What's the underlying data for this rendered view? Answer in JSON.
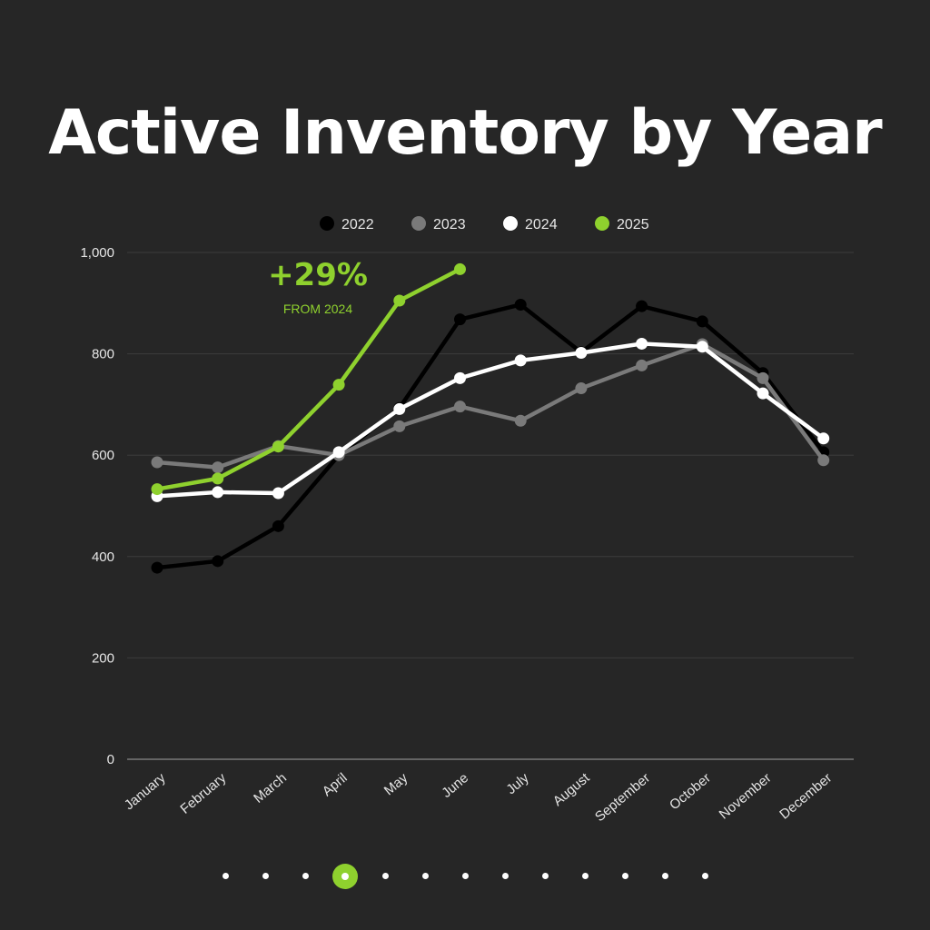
{
  "title": "Active Inventory by Year",
  "chart_data": {
    "type": "line",
    "title": "Active Inventory by Year",
    "categories": [
      "January",
      "February",
      "March",
      "April",
      "May",
      "June",
      "July",
      "August",
      "September",
      "October",
      "November",
      "December"
    ],
    "ylim": [
      0,
      1000
    ],
    "yticks": [
      0,
      200,
      400,
      600,
      800,
      1000
    ],
    "ytick_labels": [
      "0",
      "200",
      "400",
      "600",
      "800",
      "1,000"
    ],
    "grid": true,
    "legend_position": "top-center",
    "series": [
      {
        "name": "2022",
        "color": "#000000",
        "values": [
          378,
          391,
          460,
          600,
          693,
          868,
          897,
          803,
          894,
          864,
          762,
          606
        ]
      },
      {
        "name": "2023",
        "color": "#7a7a7a",
        "values": [
          586,
          576,
          618,
          600,
          657,
          696,
          668,
          732,
          777,
          819,
          752,
          590
        ]
      },
      {
        "name": "2024",
        "color": "#ffffff",
        "values": [
          519,
          527,
          525,
          606,
          691,
          752,
          787,
          802,
          820,
          814,
          722,
          633
        ]
      },
      {
        "name": "2025",
        "color": "#8fd12e",
        "values": [
          533,
          554,
          617,
          739,
          905,
          967,
          null,
          null,
          null,
          null,
          null,
          null
        ]
      }
    ],
    "annotation": {
      "value": "+29%",
      "label": "FROM 2024"
    }
  },
  "pager": {
    "count": 13,
    "active_index": 3
  }
}
